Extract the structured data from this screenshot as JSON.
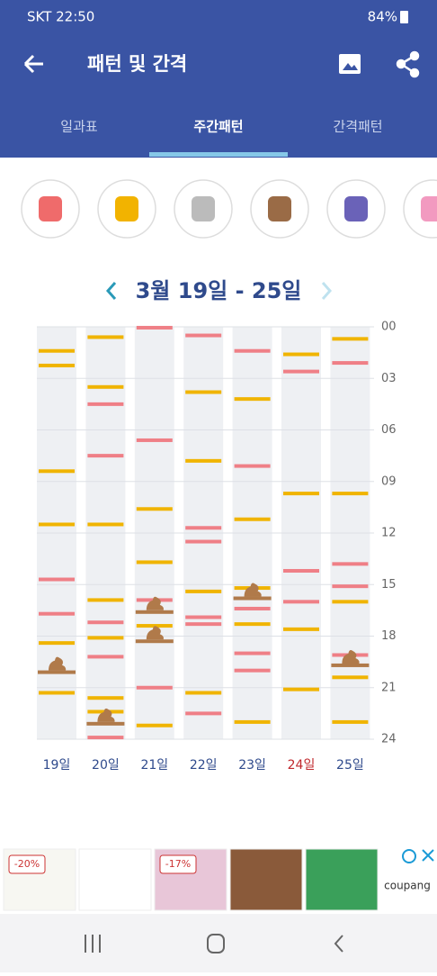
{
  "status_bar": {
    "carrier_time": "SKT 22:50",
    "battery": "84%"
  },
  "app_bar": {
    "title": "패턴 및 간격"
  },
  "tabs": [
    "일과표",
    "주간패턴",
    "간격패턴"
  ],
  "active_tab": 1,
  "week_label": "3월 19일 - 25일",
  "pattern": {
    "colors": {
      "feed": "#f0b400",
      "red": "#ef7f86",
      "poop": "#b07a4a"
    },
    "ylim": [
      0,
      24
    ],
    "yticks": [
      {
        "value": 0,
        "label": "00"
      },
      {
        "value": 3,
        "label": "03"
      },
      {
        "value": 6,
        "label": "06"
      },
      {
        "value": 9,
        "label": "09"
      },
      12,
      15,
      18,
      21,
      24
    ],
    "days": [
      {
        "label": "19일",
        "feed": [
          1.4,
          2.25,
          8.4,
          11.5,
          18.4,
          21.3
        ],
        "red": [
          14.7,
          16.7
        ],
        "poop": [
          20.1
        ]
      },
      {
        "label": "20일",
        "feed": [
          0.6,
          3.5,
          11.5,
          15.9,
          18.1,
          21.6,
          22.4
        ],
        "red": [
          4.5,
          7.5,
          17.2,
          19.2,
          23.9
        ],
        "poop": [
          23.1
        ]
      },
      {
        "label": "21일",
        "feed": [
          10.6,
          13.7,
          17.4,
          23.2
        ],
        "red": [
          0.05,
          6.6,
          15.9,
          21.0
        ],
        "poop": [
          16.6,
          18.3
        ]
      },
      {
        "label": "22일",
        "feed": [
          3.8,
          7.8,
          15.4,
          21.3
        ],
        "red": [
          0.5,
          11.7,
          12.5,
          16.9,
          17.3,
          22.5
        ],
        "poop": []
      },
      {
        "label": "23일",
        "feed": [
          4.2,
          11.2,
          15.2,
          17.3,
          23.0
        ],
        "red": [
          1.4,
          8.1,
          16.4,
          19.0,
          20.0
        ],
        "poop": [
          15.8
        ]
      },
      {
        "label": "24일",
        "feed": [
          1.6,
          9.7,
          17.6,
          21.1
        ],
        "red": [
          2.6,
          14.2,
          16.0
        ],
        "poop": []
      },
      {
        "label": "25일",
        "feed": [
          0.7,
          9.7,
          16.0,
          20.4,
          23.0
        ],
        "red": [
          2.1,
          13.8,
          15.1,
          19.1
        ],
        "poop": [
          19.7
        ]
      }
    ],
    "weekend_day": 5
  },
  "ads": {
    "badges": [
      "-20%",
      "-17%"
    ],
    "brand": "coupang"
  }
}
